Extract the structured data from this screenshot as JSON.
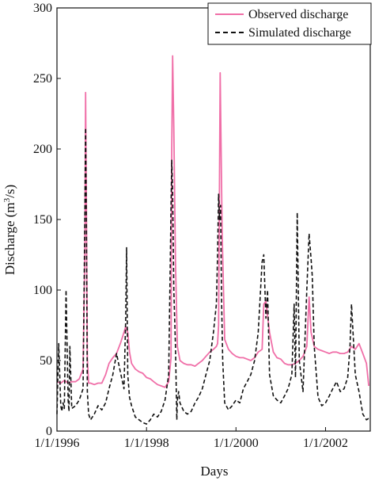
{
  "chart_data": {
    "type": "line",
    "xlabel": "Days",
    "ylabel_main": "Discharge (m",
    "ylabel_sup": "3",
    "ylabel_tail": "/s)",
    "x_range": [
      "1/1/1996",
      "1/1/2003"
    ],
    "ylim": [
      0,
      300
    ],
    "y_ticks": [
      "0",
      "50",
      "100",
      "150",
      "200",
      "250",
      "300"
    ],
    "x_tick_labels": [
      "1/1/1996",
      "1/1/1998",
      "1/1/2000",
      "1/1/2002"
    ],
    "x_tick_dates": [
      "1996-01-01",
      "1998-01-01",
      "2000-01-01",
      "2002-01-01"
    ],
    "legend_position": "top-right",
    "grid": false,
    "series": [
      {
        "name": "Observed discharge",
        "color": "#f06fa8",
        "style": "solid",
        "x": [
          "1996-01-01",
          "1996-02-01",
          "1996-03-01",
          "1996-04-01",
          "1996-05-01",
          "1996-06-01",
          "1996-07-01",
          "1996-08-01",
          "1996-08-15",
          "1996-08-22",
          "1996-08-28",
          "1996-09-05",
          "1996-09-15",
          "1996-10-01",
          "1996-11-01",
          "1996-12-01",
          "1997-01-01",
          "1997-02-01",
          "1997-03-01",
          "1997-04-01",
          "1997-05-01",
          "1997-06-01",
          "1997-07-01",
          "1997-07-15",
          "1997-08-01",
          "1997-08-15",
          "1997-09-01",
          "1997-10-01",
          "1997-11-01",
          "1997-12-01",
          "1998-01-01",
          "1998-02-01",
          "1998-03-01",
          "1998-04-01",
          "1998-05-01",
          "1998-06-01",
          "1998-07-01",
          "1998-07-20",
          "1998-07-26",
          "1998-08-02",
          "1998-08-12",
          "1998-08-25",
          "1998-09-10",
          "1998-10-01",
          "1998-11-01",
          "1998-12-01",
          "1999-01-01",
          "1999-02-01",
          "1999-03-01",
          "1999-04-01",
          "1999-05-01",
          "1999-06-01",
          "1999-07-01",
          "1999-07-25",
          "1999-08-04",
          "1999-08-12",
          "1999-08-25",
          "1999-09-10",
          "1999-10-01",
          "1999-11-01",
          "1999-12-01",
          "2000-01-01",
          "2000-02-01",
          "2000-03-01",
          "2000-04-01",
          "2000-05-01",
          "2000-06-01",
          "2000-07-01",
          "2000-08-01",
          "2000-08-15",
          "2000-09-01",
          "2000-10-01",
          "2000-11-01",
          "2000-12-01",
          "2001-01-01",
          "2001-02-01",
          "2001-03-01",
          "2001-04-01",
          "2001-05-01",
          "2001-06-01",
          "2001-07-01",
          "2001-08-01",
          "2001-08-20",
          "2001-09-05",
          "2001-10-01",
          "2001-11-01",
          "2001-12-01",
          "2002-01-01",
          "2002-02-01",
          "2002-03-01",
          "2002-04-01",
          "2002-05-01",
          "2002-06-01",
          "2002-07-01",
          "2002-08-01",
          "2002-09-01",
          "2002-10-01",
          "2002-11-01",
          "2002-12-01",
          "2002-12-20"
        ],
        "y": [
          35,
          34,
          36,
          34,
          35,
          35,
          37,
          44,
          125,
          240,
          160,
          52,
          34,
          34,
          33,
          34,
          34,
          40,
          48,
          52,
          55,
          62,
          70,
          74,
          70,
          56,
          48,
          44,
          42,
          41,
          38,
          37,
          35,
          33,
          32,
          31,
          35,
          52,
          200,
          266,
          215,
          120,
          60,
          50,
          48,
          47,
          47,
          46,
          48,
          50,
          53,
          56,
          58,
          60,
          62,
          75,
          254,
          140,
          65,
          58,
          55,
          53,
          52,
          52,
          51,
          50,
          52,
          56,
          58,
          90,
          92,
          70,
          56,
          52,
          51,
          48,
          47,
          47,
          48,
          50,
          53,
          60,
          95,
          70,
          60,
          58,
          57,
          56,
          55,
          56,
          56,
          55,
          55,
          56,
          60,
          58,
          62,
          55,
          48,
          32
        ],
        "x_note": "dates"
      },
      {
        "name": "Simulated discharge",
        "color": "#111111",
        "style": "dashed",
        "x": [
          "1996-01-01",
          "1996-01-15",
          "1996-02-01",
          "1996-02-10",
          "1996-02-20",
          "1996-03-01",
          "1996-03-15",
          "1996-04-01",
          "1996-04-08",
          "1996-04-15",
          "1996-05-01",
          "1996-06-01",
          "1996-07-01",
          "1996-08-01",
          "1996-08-15",
          "1996-08-22",
          "1996-08-28",
          "1996-09-05",
          "1996-09-15",
          "1996-10-01",
          "1996-11-01",
          "1996-12-01",
          "1997-01-01",
          "1997-02-01",
          "1997-03-01",
          "1997-04-01",
          "1997-05-01",
          "1997-06-01",
          "1997-07-01",
          "1997-07-15",
          "1997-07-22",
          "1997-08-01",
          "1997-08-15",
          "1997-09-01",
          "1997-10-01",
          "1997-11-01",
          "1997-12-01",
          "1998-01-01",
          "1998-02-01",
          "1998-03-01",
          "1998-04-01",
          "1998-05-01",
          "1998-06-01",
          "1998-07-01",
          "1998-07-20",
          "1998-07-26",
          "1998-08-02",
          "1998-08-12",
          "1998-08-25",
          "1998-09-05",
          "1998-09-10",
          "1998-09-20",
          "1998-10-01",
          "1998-11-01",
          "1998-12-01",
          "1999-01-01",
          "1999-02-01",
          "1999-03-01",
          "1999-04-01",
          "1999-05-01",
          "1999-06-01",
          "1999-07-01",
          "1999-07-25",
          "1999-08-04",
          "1999-08-12",
          "1999-08-20",
          "1999-08-28",
          "1999-09-05",
          "1999-09-15",
          "1999-10-01",
          "1999-11-01",
          "1999-12-01",
          "2000-01-01",
          "2000-02-01",
          "2000-03-01",
          "2000-04-01",
          "2000-05-01",
          "2000-06-01",
          "2000-07-01",
          "2000-08-01",
          "2000-08-15",
          "2000-09-01",
          "2000-09-15",
          "2000-10-01",
          "2000-11-01",
          "2000-12-01",
          "2001-01-01",
          "2001-02-01",
          "2001-03-01",
          "2001-04-01",
          "2001-04-20",
          "2001-05-01",
          "2001-05-15",
          "2001-06-01",
          "2001-07-01",
          "2001-08-01",
          "2001-08-20",
          "2001-09-05",
          "2001-09-15",
          "2001-10-01",
          "2001-11-01",
          "2001-12-01",
          "2002-01-01",
          "2002-02-01",
          "2002-03-01",
          "2002-04-01",
          "2002-05-01",
          "2002-06-01",
          "2002-07-01",
          "2002-07-20",
          "2002-08-01",
          "2002-09-01",
          "2002-10-01",
          "2002-11-01",
          "2002-12-01",
          "2002-12-20"
        ],
        "y": [
          12,
          62,
          18,
          14,
          20,
          16,
          100,
          22,
          14,
          60,
          16,
          18,
          22,
          30,
          150,
          215,
          150,
          28,
          12,
          8,
          12,
          18,
          15,
          20,
          30,
          40,
          55,
          42,
          30,
          80,
          130,
          40,
          24,
          18,
          10,
          8,
          6,
          5,
          8,
          12,
          10,
          14,
          22,
          40,
          160,
          192,
          170,
          100,
          60,
          8,
          22,
          28,
          20,
          14,
          12,
          14,
          20,
          24,
          30,
          40,
          50,
          70,
          90,
          125,
          168,
          150,
          160,
          95,
          50,
          20,
          15,
          18,
          22,
          20,
          30,
          35,
          40,
          50,
          70,
          120,
          125,
          80,
          100,
          40,
          25,
          22,
          20,
          25,
          30,
          40,
          90,
          38,
          155,
          50,
          28,
          100,
          140,
          122,
          110,
          60,
          24,
          18,
          20,
          25,
          30,
          35,
          28,
          30,
          38,
          60,
          90,
          40,
          28,
          12,
          8,
          9
        ],
        "x_note": "dates"
      }
    ]
  }
}
